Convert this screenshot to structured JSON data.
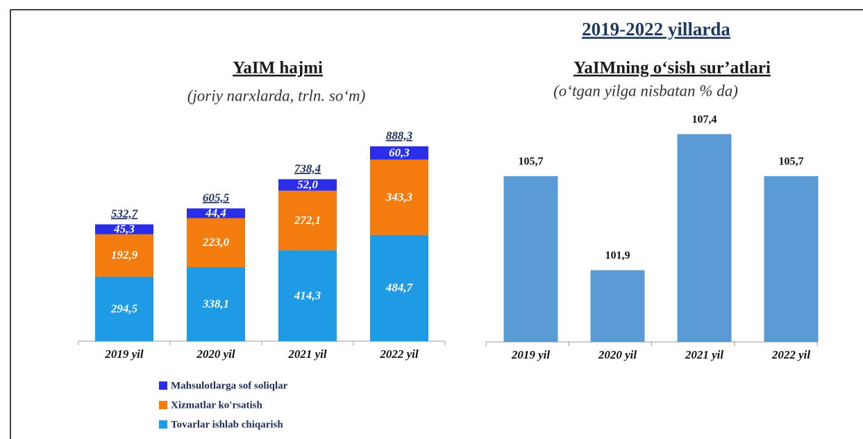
{
  "title": "2019-2022 yillarda",
  "chart_data": [
    {
      "type": "stacked_bar",
      "title": "YaIM hajmi",
      "subtitle": "(joriy narxlarda, trln. so‘m)",
      "categories": [
        "2019 yil",
        "2020 yil",
        "2021 yil",
        "2022 yil"
      ],
      "series": [
        {
          "name": "Tovarlar ishlab chiqarish",
          "color": "#1e9be4",
          "values": [
            294.5,
            338.1,
            414.3,
            484.7
          ],
          "value_labels": [
            "294,5",
            "338,1",
            "414,3",
            "484,7"
          ]
        },
        {
          "name": "Xizmatlar ko'rsatish",
          "color": "#f47c0e",
          "values": [
            192.9,
            223.0,
            272.1,
            343.3
          ],
          "value_labels": [
            "192,9",
            "223,0",
            "272,1",
            "343,3"
          ]
        },
        {
          "name": "Mahsulotlarga sof soliqlar",
          "color": "#2b2ee8",
          "values": [
            45.3,
            44.4,
            52.0,
            60.3
          ],
          "value_labels": [
            "45,3",
            "44,4",
            "52,0",
            "60,3"
          ]
        }
      ],
      "totals": [
        532.7,
        605.5,
        738.4,
        888.3
      ],
      "total_labels": [
        "532,7",
        "605,5",
        "738,4",
        "888,3"
      ]
    },
    {
      "type": "bar",
      "title": "YaIMning o‘sish sur’atlari",
      "subtitle": "(o‘tgan yilga nisbatan % da)",
      "categories": [
        "2019 yil",
        "2020 yil",
        "2021 yil",
        "2022 yil"
      ],
      "values": [
        105.7,
        101.9,
        107.4,
        105.7
      ],
      "value_labels": [
        "105,7",
        "101,9",
        "107,4",
        "105,7"
      ],
      "color": "#5b9bd5",
      "ylim": [
        99,
        108
      ]
    }
  ]
}
